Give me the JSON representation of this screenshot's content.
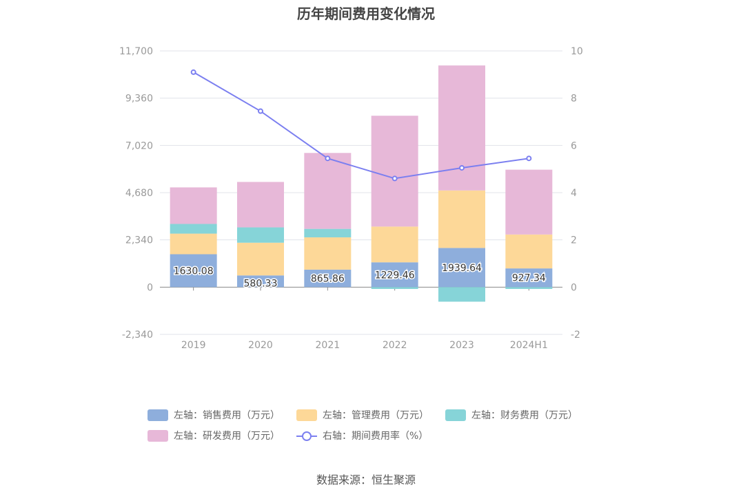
{
  "title": "历年期间费用变化情况",
  "source": "数据来源：恒生聚源",
  "colors": {
    "sales": "#8eaedc",
    "admin": "#fdd898",
    "finance": "#86d4d8",
    "rnd": "#e7b8d8",
    "rate": "#7b7ff0"
  },
  "legend": [
    {
      "key": "sales",
      "label": "左轴：销售费用（万元）",
      "kind": "box"
    },
    {
      "key": "admin",
      "label": "左轴：管理费用（万元）",
      "kind": "box"
    },
    {
      "key": "finance",
      "label": "左轴：财务费用（万元）",
      "kind": "box"
    },
    {
      "key": "rnd",
      "label": "左轴：研发费用（万元）",
      "kind": "box"
    },
    {
      "key": "rate",
      "label": "右轴：期间费用率（%）",
      "kind": "line"
    }
  ],
  "chart_data": {
    "type": "bar",
    "stacked": true,
    "categories": [
      "2019",
      "2020",
      "2021",
      "2022",
      "2023",
      "2024H1"
    ],
    "y_left": {
      "min": -2340,
      "max": 11700,
      "ticks": [
        "11,700",
        "9,360",
        "7,020",
        "4,680",
        "2,340",
        "0",
        "-2,340"
      ],
      "tick_values": [
        11700,
        9360,
        7020,
        4680,
        2340,
        0,
        -2340
      ]
    },
    "y_right": {
      "min": -2,
      "max": 10,
      "ticks": [
        "10",
        "8",
        "6",
        "4",
        "2",
        "0",
        "-2"
      ],
      "tick_values": [
        10,
        8,
        6,
        4,
        2,
        0,
        -2
      ]
    },
    "series": [
      {
        "key": "sales",
        "name": "左轴：销售费用（万元）",
        "axis": "left",
        "values": [
          1630.08,
          580.33,
          865.86,
          1229.46,
          1939.64,
          927.34
        ],
        "labels": [
          "1630.08",
          "580.33",
          "865.86",
          "1229.46",
          "1939.64",
          "927.34"
        ]
      },
      {
        "key": "admin",
        "name": "左轴：管理费用（万元）",
        "axis": "left",
        "values": [
          1020,
          1620,
          1600,
          1770,
          2850,
          1680
        ]
      },
      {
        "key": "finance",
        "name": "左轴：财务费用（万元）",
        "axis": "left",
        "values": [
          480,
          760,
          420,
          -90,
          -720,
          -90
        ]
      },
      {
        "key": "rnd",
        "name": "左轴：研发费用（万元）",
        "axis": "left",
        "values": [
          1810,
          2250,
          3760,
          5490,
          6190,
          3210
        ]
      },
      {
        "key": "rate",
        "name": "右轴：期间费用率（%）",
        "axis": "right",
        "type": "line",
        "values": [
          9.1,
          7.45,
          5.45,
          4.6,
          5.05,
          5.45
        ]
      }
    ],
    "grid": true
  }
}
